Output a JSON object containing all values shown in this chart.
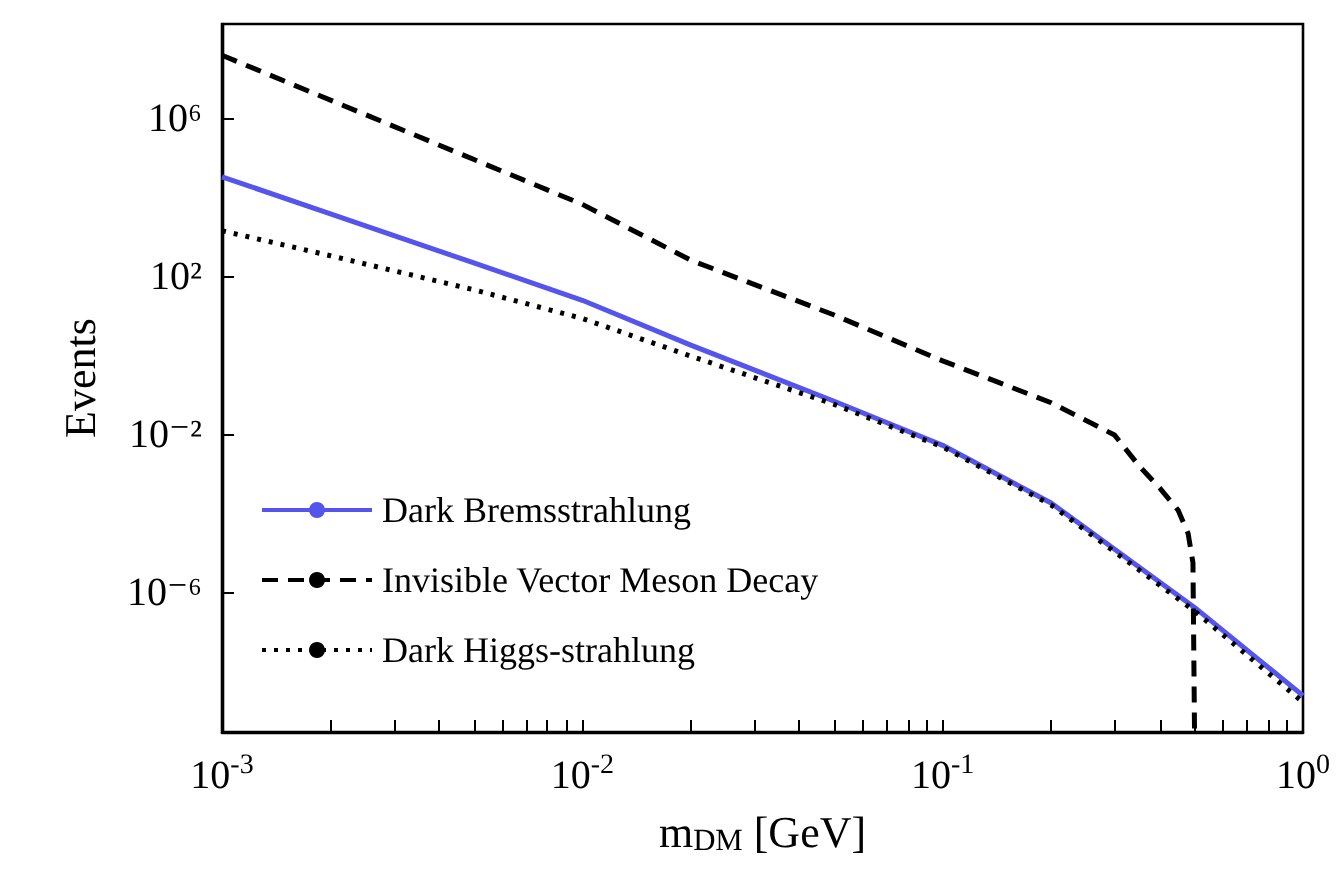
{
  "chart_data": {
    "type": "line",
    "xlabel": "m$_{DM}$ [GeV]",
    "ylabel": "Events",
    "log": "xy",
    "grid": false,
    "legend": "bottom left",
    "marker": "none",
    "xlim": [
      0.001,
      1
    ],
    "ylim": [
      3e-10,
      260000000.0
    ],
    "xticks": [
      {
        "value": 0.001,
        "label": "10$^{-3}$"
      },
      {
        "value": 0.002,
        "label": null
      },
      {
        "value": 0.003,
        "label": null
      },
      {
        "value": 0.004,
        "label": null
      },
      {
        "value": 0.005,
        "label": null
      },
      {
        "value": 0.006,
        "label": null
      },
      {
        "value": 0.007,
        "label": null
      },
      {
        "value": 0.008,
        "label": null
      },
      {
        "value": 0.009,
        "label": null
      },
      {
        "value": 0.01,
        "label": "10$^{-2}$"
      },
      {
        "value": 0.02,
        "label": null
      },
      {
        "value": 0.03,
        "label": null
      },
      {
        "value": 0.04,
        "label": null
      },
      {
        "value": 0.05,
        "label": null
      },
      {
        "value": 0.06,
        "label": null
      },
      {
        "value": 0.07,
        "label": null
      },
      {
        "value": 0.08,
        "label": null
      },
      {
        "value": 0.09,
        "label": null
      },
      {
        "value": 0.1,
        "label": "10$^{-1}$"
      },
      {
        "value": 0.2,
        "label": null
      },
      {
        "value": 0.3,
        "label": null
      },
      {
        "value": 0.4,
        "label": null
      },
      {
        "value": 0.5,
        "label": null
      },
      {
        "value": 0.6,
        "label": null
      },
      {
        "value": 0.7,
        "label": null
      },
      {
        "value": 0.8,
        "label": null
      },
      {
        "value": 0.9,
        "label": null
      },
      {
        "value": 1,
        "label": "10$^{0}$"
      }
    ],
    "yticks": [
      {
        "value": 1e-06,
        "label": "10⁻⁶"
      },
      {
        "value": 0.01,
        "label": "10⁻²"
      },
      {
        "value": 100,
        "label": "10²"
      },
      {
        "value": 1000000,
        "label": "10⁶"
      }
    ],
    "series": [
      {
        "name": "Dark Bremsstrahlung",
        "color": "#5555ee",
        "line_style": "solid",
        "x": [
          0.001,
          0.002,
          0.005,
          0.01,
          0.02,
          0.05,
          0.1,
          0.2,
          0.5,
          1
        ],
        "values": [
          35000,
          4000,
          230,
          26,
          1.9,
          0.072,
          0.0055,
          0.00019,
          4.3e-07,
          2.5e-09
        ]
      },
      {
        "name": "Invisible Vector Meson Decay",
        "color": "#000000",
        "line_style": "dashed",
        "x": [
          0.001,
          0.01,
          0.02,
          0.05,
          0.1,
          0.2,
          0.3,
          0.35,
          0.4,
          0.45,
          0.48,
          0.495,
          0.5
        ],
        "values": [
          42000000,
          7000,
          270,
          11,
          0.76,
          0.066,
          0.01,
          0.0017,
          0.00046,
          0.000126,
          3.2e-05,
          5.8e-06,
          3e-10
        ]
      },
      {
        "name": "Dark Higgs-strahlung",
        "color": "#000000",
        "line_style": "dotted",
        "x": [
          0.001,
          0.002,
          0.005,
          0.01,
          0.02,
          0.05,
          0.1,
          0.2,
          0.5,
          1
        ],
        "values": [
          1500,
          350,
          48,
          9,
          1,
          0.06,
          0.005,
          0.00017,
          3.5e-07,
          1.7e-09
        ]
      }
    ]
  }
}
